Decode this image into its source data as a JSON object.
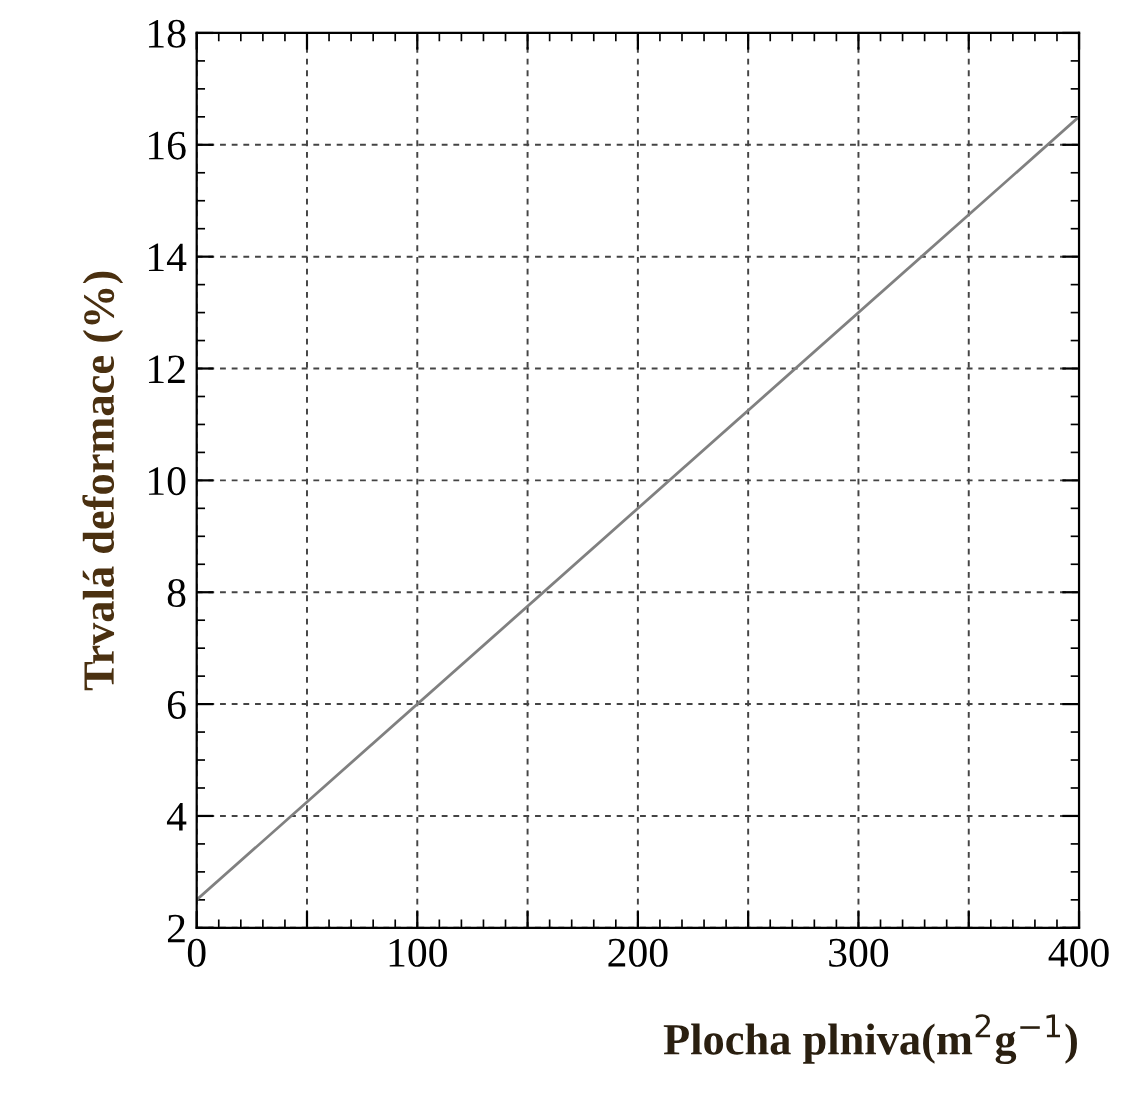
{
  "chart_data": {
    "type": "line",
    "xlabel": "Plocha plniva(m$^{2}$g$^{−1}$)",
    "ylabel": "Trvalá deformace (%)",
    "x": [
      0,
      400
    ],
    "series": [
      {
        "color": "#808080",
        "values": [
          2.5,
          16.5
        ]
      }
    ],
    "xlim": [
      0,
      400
    ],
    "ylim": [
      2,
      18
    ],
    "xticks": [
      0,
      {
        "value": 50,
        "label": null
      },
      100,
      {
        "value": 150,
        "label": null
      },
      200,
      {
        "value": 250,
        "label": null
      },
      300,
      {
        "value": 350,
        "label": null
      },
      400
    ],
    "yticks": [
      2,
      4,
      6,
      8,
      10,
      12,
      14,
      16,
      18
    ],
    "grid": true,
    "marker": "none",
    "line_style": "solid"
  }
}
